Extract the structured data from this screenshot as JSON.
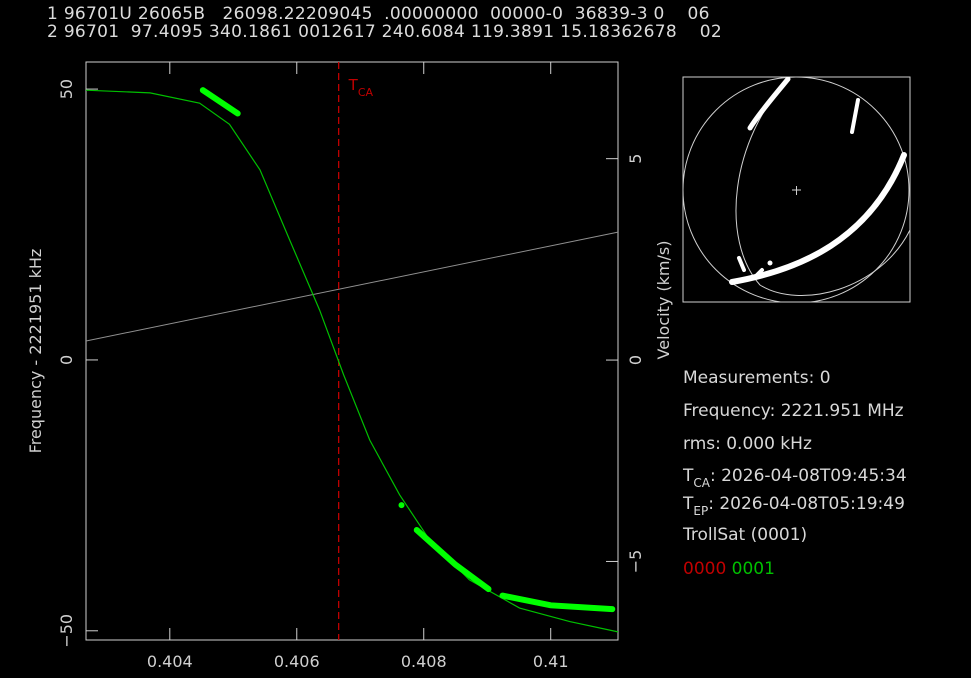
{
  "tle": {
    "line1": "1 96701U 26065B   26098.22209045  .00000000  00000-0  36839-3 0    06",
    "line2": "2 96701  97.4095 340.1861 0012617 240.6084 119.3891 15.18362678    02"
  },
  "info": {
    "measurements": "Measurements: 0",
    "frequency": "Frequency: 2221.951 MHz",
    "rms": "rms: 0.000 kHz",
    "tca_label": "T",
    "tca_sub": "CA",
    "tca_value": ": 2026-04-08T09:45:34",
    "tep_label": "T",
    "tep_sub": "EP",
    "tep_value": ": 2026-04-08T05:19:49",
    "satellite": "TrollSat  (0001)",
    "code_red": "0000",
    "code_green": "0001"
  },
  "colors": {
    "curve": "#00c000",
    "points": "#00ff00",
    "tca": "#c00000",
    "gray_line": "#909090",
    "axes": "#d0d0d0"
  },
  "chart_data": {
    "type": "line",
    "xlabel": "",
    "ylabel": "Frequency - 2221951 kHz",
    "ylabel_right": "Velocity (km/s)",
    "xlim": [
      0.40268,
      0.41106
    ],
    "ylim": [
      -51.7,
      55
    ],
    "ylim_right": [
      -6.95,
      7.4
    ],
    "xticks": [
      0.404,
      0.406,
      0.408,
      0.41
    ],
    "xtick_labels": [
      "0.404",
      "0.406",
      "0.408",
      "0.41"
    ],
    "yticks": [
      -50,
      0,
      50
    ],
    "ytick_labels": [
      "−50",
      "0",
      "50"
    ],
    "yticks_right": [
      -5,
      0,
      5
    ],
    "ytick_right_labels": [
      "−5",
      "0",
      "5"
    ],
    "tca": {
      "x": 0.40666,
      "label": "T",
      "sub": "CA"
    },
    "model_curve": {
      "x": [
        0.40268,
        0.40369,
        0.40447,
        0.40494,
        0.40542,
        0.40589,
        0.40636,
        0.40674,
        0.40715,
        0.40762,
        0.40809,
        0.40872,
        0.40951,
        0.4103,
        0.41106
      ],
      "y": [
        49.8,
        49.3,
        47.4,
        43.5,
        35.1,
        22.1,
        9.2,
        -2.8,
        -14.8,
        -24.9,
        -33.2,
        -40.6,
        -45.8,
        -48.3,
        -50.2
      ]
    },
    "gray_line": {
      "x": [
        0.40268,
        0.41106
      ],
      "y": [
        3.5,
        23.6
      ]
    },
    "point_segments": [
      {
        "x": [
          0.40452,
          0.40507
        ],
        "y": [
          49.8,
          45.5
        ]
      },
      {
        "x": [
          0.40765,
          0.40765
        ],
        "y": [
          -26.8,
          -26.8
        ]
      },
      {
        "x": [
          0.40789,
          0.4085,
          0.40902
        ],
        "y": [
          -31.4,
          -37.8,
          -42.3
        ]
      },
      {
        "x": [
          0.40924,
          0.41,
          0.41097
        ],
        "y": [
          -43.5,
          -45.3,
          -46.0
        ]
      }
    ]
  }
}
